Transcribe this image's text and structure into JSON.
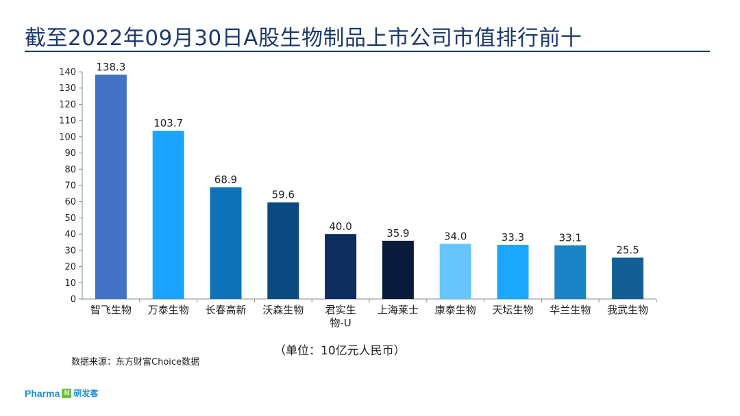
{
  "title": "截至2022年09月30日A股生物制品上市公司市值排行前十",
  "unit_note": "（单位：10亿元人民币）",
  "source_note": "数据来源：东方财富Choice数据",
  "brand": {
    "name": "Pharma",
    "mark": "N",
    "cn": "研发客"
  },
  "chart_data": {
    "type": "bar",
    "title": "截至2022年09月30日A股生物制品上市公司市值排行前十",
    "categories": [
      [
        "智飞生物"
      ],
      [
        "万泰生物"
      ],
      [
        "长春高新"
      ],
      [
        "沃森生物"
      ],
      [
        "君实生",
        "物-U"
      ],
      [
        "上海莱士"
      ],
      [
        "康泰生物"
      ],
      [
        "天坛生物"
      ],
      [
        "华兰生物"
      ],
      [
        "我武生物"
      ]
    ],
    "values": [
      138.3,
      103.7,
      68.9,
      59.6,
      40.0,
      35.9,
      34.0,
      33.3,
      33.1,
      25.5
    ],
    "value_labels": [
      "138.3",
      "103.7",
      "68.9",
      "59.6",
      "40.0",
      "35.9",
      "34.0",
      "33.3",
      "33.1",
      "25.5"
    ],
    "colors": [
      "#4472c4",
      "#1aa3ff",
      "#0f72b8",
      "#0b4a7f",
      "#0d2d5e",
      "#0a1a3a",
      "#66c6fb",
      "#1aa8ff",
      "#1a84c6",
      "#135f93"
    ],
    "yticks": [
      0,
      10,
      20,
      30,
      40,
      50,
      60,
      70,
      80,
      90,
      100,
      110,
      120,
      130,
      140
    ],
    "ylim": [
      0,
      140
    ],
    "xlabel": "",
    "ylabel": "",
    "grid": false
  }
}
